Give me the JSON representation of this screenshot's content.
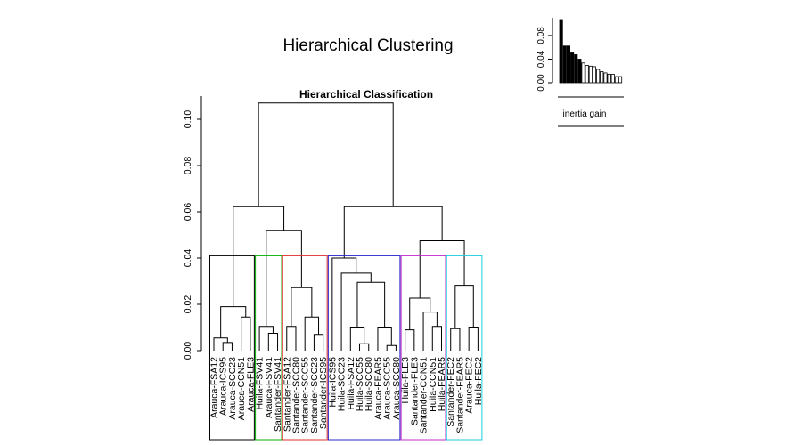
{
  "figure": {
    "title": "Hierarchical Clustering"
  },
  "chart_data": [
    {
      "type": "dendrogram",
      "title": "Hierarchical Classification",
      "xlabel": "",
      "ylabel": "",
      "ylim": [
        0,
        0.11
      ],
      "yticks": [
        0.0,
        0.02,
        0.04,
        0.06,
        0.08,
        0.1
      ],
      "ytick_labels": [
        "0.00",
        "0.02",
        "0.04",
        "0.06",
        "0.08",
        "0.10"
      ],
      "leaves": [
        "Arauca-FSA12",
        "Arauca-ICS95",
        "Arauca-SCC23",
        "Arauca-CCN51",
        "Arauca-FLE3",
        "Huila-FSV41",
        "Arauca-FSV41",
        "Santander-FSV41",
        "Santander-FSA12",
        "Santander-SCC80",
        "Santander-SCC55",
        "Santander-SCC23",
        "Santander-ICS95",
        "Huila-ICS95",
        "Huila-SCC23",
        "Huila-FSA12",
        "Huila-SCC55",
        "Huila-SCC80",
        "Arauca-FEAR5",
        "Arauca-SCC55",
        "Arauca-SCC80",
        "Huila-FLE3",
        "Santander-FLE3",
        "Santander-CCN51",
        "Huila-CCN51",
        "Huila-FEAR5",
        "Santander-FEC2",
        "Santander-FEAR5",
        "Arauca-FEC2",
        "Huila-FEC2"
      ],
      "merges": [
        {
          "a": 1,
          "b": 2,
          "height": 0.0035
        },
        {
          "a": 0,
          "b": "m0",
          "height": 0.0055
        },
        {
          "a": 3,
          "b": 4,
          "height": 0.0145
        },
        {
          "a": "m1",
          "b": "m2",
          "height": 0.019
        },
        {
          "a": 6,
          "b": 7,
          "height": 0.0075
        },
        {
          "a": 5,
          "b": "m4",
          "height": 0.0105
        },
        {
          "a": 11,
          "b": 12,
          "height": 0.007
        },
        {
          "a": 10,
          "b": "m6",
          "height": 0.0145
        },
        {
          "a": 8,
          "b": 9,
          "height": 0.0105
        },
        {
          "a": "m8",
          "b": "m7",
          "height": 0.0272
        },
        {
          "a": "m5",
          "b": "m9",
          "height": 0.052
        },
        {
          "a": "m3",
          "b": "m10",
          "height": 0.0622
        },
        {
          "a": 16,
          "b": 17,
          "height": 0.003
        },
        {
          "a": 15,
          "b": "m12",
          "height": 0.0102
        },
        {
          "a": 19,
          "b": 20,
          "height": 0.0022
        },
        {
          "a": 18,
          "b": "m14",
          "height": 0.0102
        },
        {
          "a": "m13",
          "b": "m15",
          "height": 0.0295
        },
        {
          "a": 14,
          "b": "m16",
          "height": 0.0335
        },
        {
          "a": 13,
          "b": "m17",
          "height": 0.04
        },
        {
          "a": 24,
          "b": 25,
          "height": 0.0105
        },
        {
          "a": 23,
          "b": "m19",
          "height": 0.0167
        },
        {
          "a": 21,
          "b": 22,
          "height": 0.009
        },
        {
          "a": "m21",
          "b": "m20",
          "height": 0.0227
        },
        {
          "a": 28,
          "b": 29,
          "height": 0.0102
        },
        {
          "a": 26,
          "b": 27,
          "height": 0.0095
        },
        {
          "a": "m24",
          "b": "m23",
          "height": 0.0282
        },
        {
          "a": "m22",
          "b": "m25",
          "height": 0.0475
        },
        {
          "a": "m18",
          "b": "m26",
          "height": 0.0622
        },
        {
          "a": "m11",
          "b": "m27",
          "height": 0.107
        }
      ],
      "clusters": [
        {
          "start": 0,
          "end": 4,
          "color": "#000000"
        },
        {
          "start": 5,
          "end": 7,
          "color": "#00b000"
        },
        {
          "start": 8,
          "end": 12,
          "color": "#e0302c"
        },
        {
          "start": 13,
          "end": 20,
          "color": "#2a24c8"
        },
        {
          "start": 21,
          "end": 25,
          "color": "#c02ccc"
        },
        {
          "start": 26,
          "end": 29,
          "color": "#19d0d8"
        }
      ],
      "cut_height": 0.041
    },
    {
      "type": "bar",
      "title": "",
      "xlabel": "inertia gain",
      "ylabel": "",
      "ylim": [
        0,
        0.11
      ],
      "yticks": [
        0.0,
        0.04,
        0.08
      ],
      "ytick_labels": [
        "0.00",
        "0.04",
        "0.08"
      ],
      "values": [
        0.107,
        0.0622,
        0.0622,
        0.052,
        0.0475,
        0.04,
        0.0335,
        0.0295,
        0.0282,
        0.0272,
        0.0227,
        0.019,
        0.0167,
        0.0145,
        0.0145,
        0.0105,
        0.0105
      ],
      "filled_count": 6
    }
  ]
}
